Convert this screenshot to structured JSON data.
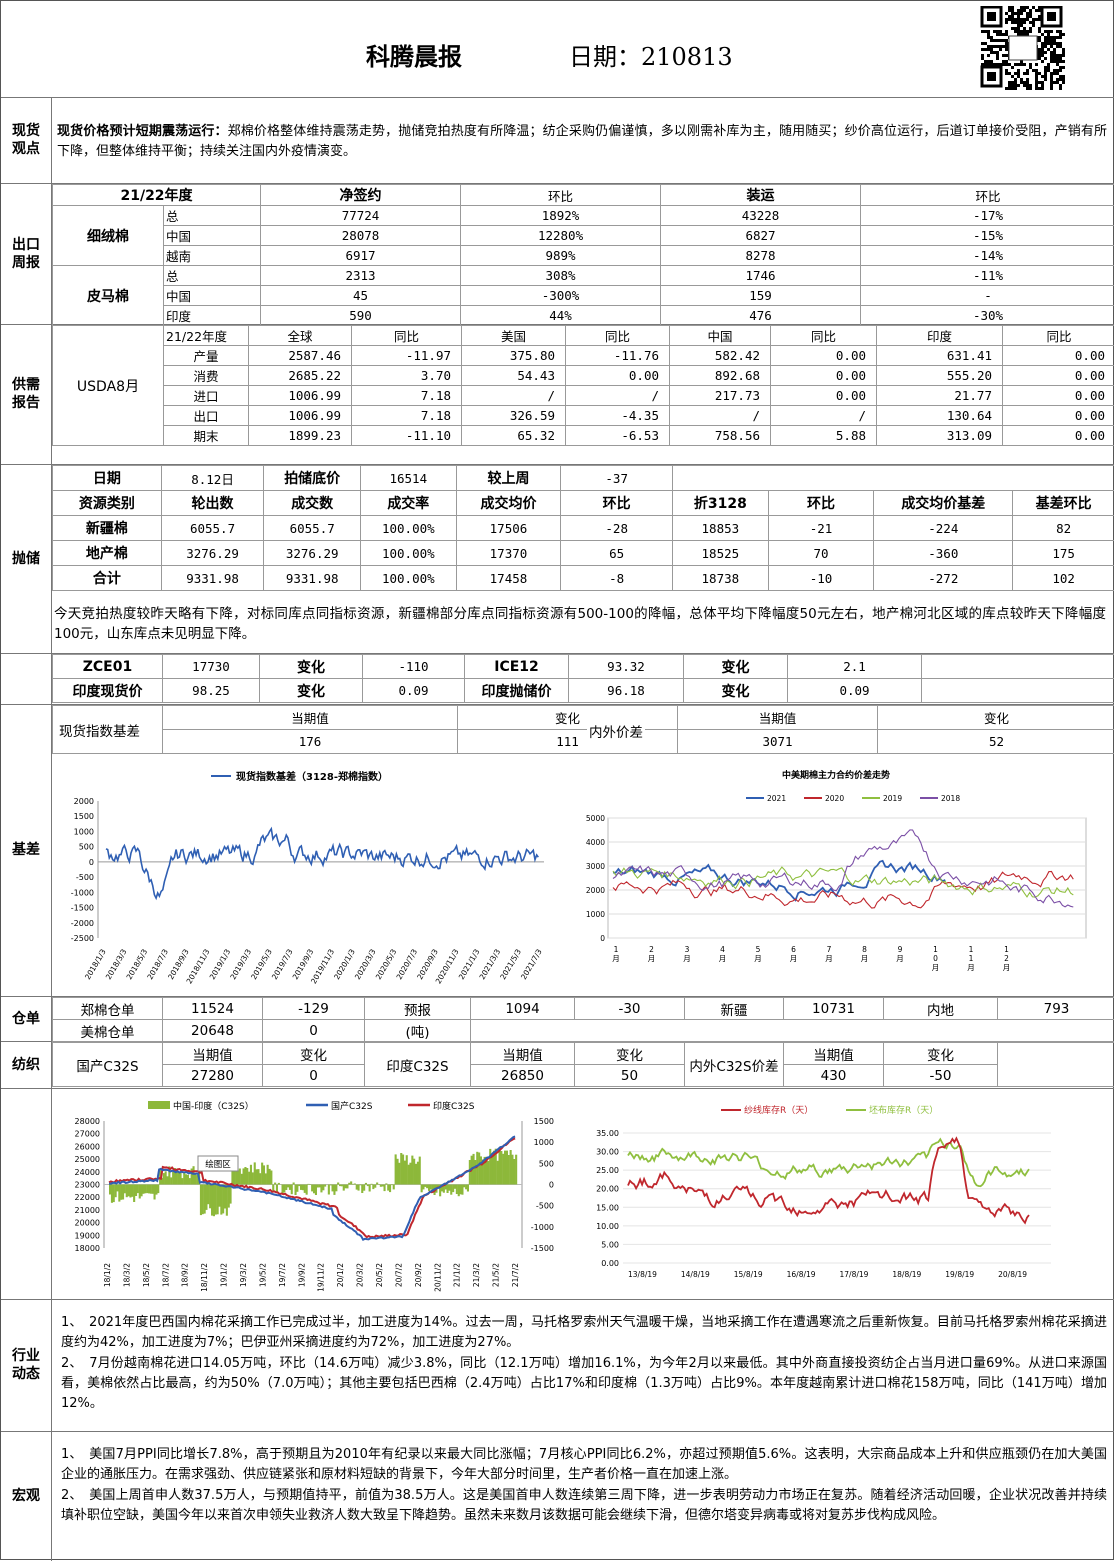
{
  "header": {
    "title": "科腾晨报",
    "date_label": "日期：210813"
  },
  "sections": {
    "spot": "现货\n观点",
    "export": "出口\n周报",
    "supply": "供需\n报告",
    "auction": "抛储",
    "basis": "基差",
    "warehouse": "仓单",
    "textile": "纺织",
    "industry": "行业\n动态",
    "macro": "宏观"
  },
  "spot_view": {
    "lead": "现货价格预计短期震荡运行：",
    "text": "郑棉价格整体维持震荡走势，抛储竞拍热度有所降温；纺企采购仍偏谨慎，多以刚需补库为主，随用随买；纱价高位运行，后道订单接价受阻，产销有所下降，但整体维持平衡；持续关注国内外疫情演变。"
  },
  "export_report": {
    "headers": [
      "21/22年度",
      "净签约",
      "环比",
      "装运",
      "环比"
    ],
    "groups": [
      {
        "name": "细绒棉",
        "rows": [
          {
            "region": "总",
            "net": "77724",
            "net_chg": "1892%",
            "ship": "43228",
            "ship_chg": "-17%"
          },
          {
            "region": "中国",
            "net": "28078",
            "net_chg": "12280%",
            "ship": "6827",
            "ship_chg": "-15%"
          },
          {
            "region": "越南",
            "net": "6917",
            "net_chg": "989%",
            "ship": "8278",
            "ship_chg": "-14%"
          }
        ]
      },
      {
        "name": "皮马棉",
        "rows": [
          {
            "region": "总",
            "net": "2313",
            "net_chg": "308%",
            "ship": "1746",
            "ship_chg": "-11%"
          },
          {
            "region": "中国",
            "net": "45",
            "net_chg": "-300%",
            "ship": "159",
            "ship_chg": "-"
          },
          {
            "region": "印度",
            "net": "590",
            "net_chg": "44%",
            "ship": "476",
            "ship_chg": "-30%"
          }
        ]
      }
    ]
  },
  "usda": {
    "label": "USDA8月",
    "headers": [
      "21/22年度",
      "全球",
      "同比",
      "美国",
      "同比",
      "中国",
      "同比",
      "印度",
      "同比"
    ],
    "rows": [
      [
        "产量",
        "2587.46",
        "-11.97",
        "375.80",
        "-11.76",
        "582.42",
        "0.00",
        "631.41",
        "0.00"
      ],
      [
        "消费",
        "2685.22",
        "3.70",
        "54.43",
        "0.00",
        "892.68",
        "0.00",
        "555.20",
        "0.00"
      ],
      [
        "进口",
        "1006.99",
        "7.18",
        "/",
        "/",
        "217.73",
        "0.00",
        "21.77",
        "0.00"
      ],
      [
        "出口",
        "1006.99",
        "7.18",
        "326.59",
        "-4.35",
        "/",
        "/",
        "130.64",
        "0.00"
      ],
      [
        "期末",
        "1899.23",
        "-11.10",
        "65.32",
        "-6.53",
        "758.56",
        "5.88",
        "313.09",
        "0.00"
      ]
    ]
  },
  "auction": {
    "top": [
      "日期",
      "8.12日",
      "拍储底价",
      "16514",
      "较上周",
      "-37"
    ],
    "headers": [
      "资源类别",
      "轮出数",
      "成交数",
      "成交率",
      "成交均价",
      "环比",
      "折3128",
      "环比",
      "成交均价基差",
      "基差环比"
    ],
    "rows": [
      [
        "新疆棉",
        "6055.7",
        "6055.7",
        "100.00%",
        "17506",
        "-28",
        "18853",
        "-21",
        "-224",
        "82"
      ],
      [
        "地产棉",
        "3276.29",
        "3276.29",
        "100.00%",
        "17370",
        "65",
        "18525",
        "70",
        "-360",
        "175"
      ],
      [
        "合计",
        "9331.98",
        "9331.98",
        "100.00%",
        "17458",
        "-8",
        "18738",
        "-10",
        "-272",
        "102"
      ]
    ],
    "note": "今天竞拍热度较昨天略有下降，对标同库点同指标资源，新疆棉部分库点同指标资源有500-100的降幅，总体平均下降幅度50元左右，地产棉河北区域的库点较昨天下降幅度100元，山东库点未见明显下降。"
  },
  "futures": {
    "row1": [
      "ZCE01",
      "17730",
      "变化",
      "-110",
      "ICE12",
      "93.32",
      "变化",
      "2.1"
    ],
    "row2": [
      "印度现货价",
      "98.25",
      "变化",
      "0.09",
      "印度抛储价",
      "96.18",
      "变化",
      "0.09"
    ]
  },
  "basis_table": {
    "left_label": "现货指数基差",
    "cur_label": "当期值",
    "chg_label": "变化",
    "cur": "176",
    "chg": "111",
    "right_label": "内外价差",
    "cur2": "3071",
    "chg2": "52"
  },
  "chart_left": {
    "title": "现货指数基差（3128-郑棉指数）",
    "yticks": [
      "2000",
      "1500",
      "1000",
      "500",
      "0",
      "-500",
      "-1000",
      "-1500",
      "-2000",
      "-2500"
    ],
    "xticks": [
      "2018/1/3",
      "2018/3/3",
      "2018/5/3",
      "2018/7/3",
      "2018/9/3",
      "2018/11/3",
      "2019/1/3",
      "2019/3/3",
      "2019/5/3",
      "2019/7/3",
      "2019/9/3",
      "2019/11/3",
      "2020/1/3",
      "2020/3/3",
      "2020/5/3",
      "2020/7/3",
      "2020/9/3",
      "2020/11/3",
      "2021/1/3",
      "2021/3/3",
      "2021/5/3",
      "2021/7/3"
    ]
  },
  "chart_right": {
    "title": "中美期棉主力合约价差走势",
    "legend": [
      "2021",
      "2020",
      "2019",
      "2018"
    ],
    "yticks": [
      "5000",
      "4000",
      "3000",
      "2000",
      "1000",
      "0"
    ],
    "xticks": [
      "1\n月",
      "2\n月",
      "3\n月",
      "4\n月",
      "5\n月",
      "6\n月",
      "7\n月",
      "8\n月",
      "9\n月",
      "1\n0\n月",
      "1\n1\n月",
      "1\n2\n月"
    ]
  },
  "warehouse": {
    "row1": [
      "郑棉仓单",
      "11524",
      "-129",
      "预报",
      "1094",
      "-30",
      "新疆",
      "10731",
      "内地",
      "793"
    ],
    "row2": [
      "美棉仓单",
      "20648",
      "0",
      "(吨)"
    ]
  },
  "textile": {
    "headers": [
      "当期值",
      "变化",
      "当期值",
      "变化",
      "当期值",
      "变化"
    ],
    "labels": [
      "国产C32S",
      "印度C32S",
      "内外C32S价差"
    ],
    "values": [
      "27280",
      "0",
      "26850",
      "50",
      "430",
      "-50"
    ]
  },
  "chart_yarn": {
    "legend": [
      "中国-印度（C32S）",
      "国产C32S",
      "印度C32S"
    ],
    "annotation": "绘图区",
    "yleft": [
      "28000",
      "27000",
      "26000",
      "25000",
      "24000",
      "23000",
      "22000",
      "21000",
      "20000",
      "19000",
      "18000"
    ],
    "yright": [
      "1500",
      "1000",
      "500",
      "0",
      "-500",
      "-1000",
      "-1500"
    ],
    "xticks": [
      "18/1/2",
      "18/3/2",
      "18/5/2",
      "18/7/2",
      "18/9/2",
      "18/11/2",
      "19/1/2",
      "19/3/2",
      "19/5/2",
      "19/7/2",
      "19/9/2",
      "19/11/2",
      "20/1/2",
      "20/3/2",
      "20/5/2",
      "20/7/2",
      "20/9/2",
      "20/11/2",
      "21/1/2",
      "21/3/2",
      "21/5/2",
      "21/7/2"
    ]
  },
  "chart_inventory": {
    "legend": [
      "纱线库存R（天）",
      "坯布库存R（天）"
    ],
    "yticks": [
      "35.00",
      "30.00",
      "25.00",
      "20.00",
      "15.00",
      "10.00",
      "5.00",
      "0.00"
    ],
    "xticks": [
      "13/8/19",
      "14/8/19",
      "15/8/19",
      "16/8/19",
      "17/8/19",
      "18/8/19",
      "19/8/19",
      "20/8/19"
    ]
  },
  "industry": [
    "1、　2021年度巴西国内棉花采摘工作已完成过半，加工进度为14%。过去一周，马托格罗索州天气温暖干燥，当地采摘工作在遭遇寒流之后重新恢复。目前马托格罗索州棉花采摘进度约为42%，加工进度为7%；巴伊亚州采摘进度约为72%，加工进度为27%。",
    "2、　7月份越南棉花进口14.05万吨，环比（14.6万吨）减少3.8%，同比（12.1万吨）增加16.1%，为今年2月以来最低。其中外商直接投资纺企占当月进口量69%。从进口来源国看，美棉依然占比最高，约为50%（7.0万吨）；其他主要包括巴西棉（2.4万吨）占比17%和印度棉（1.3万吨）占比9%。本年度越南累计进口棉花158万吨，同比（141万吨）增加12%。"
  ],
  "macro": [
    "1、　美国7月PPI同比增长7.8%，高于预期且为2010年有纪录以来最大同比涨幅；7月核心PPI同比6.2%，亦超过预期值5.6%。这表明，大宗商品成本上升和供应瓶颈仍在加大美国企业的通胀压力。在需求强劲、供应链紧张和原材料短缺的背景下，今年大部分时间里，生产者价格一直在加速上涨。",
    "2、　美国上周首申人数37.5万人，与预期值持平，前值为38.5万人。这是美国首申人数连续第三周下降，进一步表明劳动力市场正在复苏。随着经济活动回暖，企业状况改善并持续填补职位空缺，美国今年以来首次申领失业救济人数大致呈下降趋势。虽然未来数月该数据可能会继续下滑，但德尔塔变异病毒或将对复苏步伐构成风险。"
  ],
  "colors": {
    "c2021": "#2f5fb3",
    "c2020": "#c0272d",
    "c2019": "#8fbf3f",
    "c2018": "#7b4fa6",
    "bar": "#8db83a"
  }
}
